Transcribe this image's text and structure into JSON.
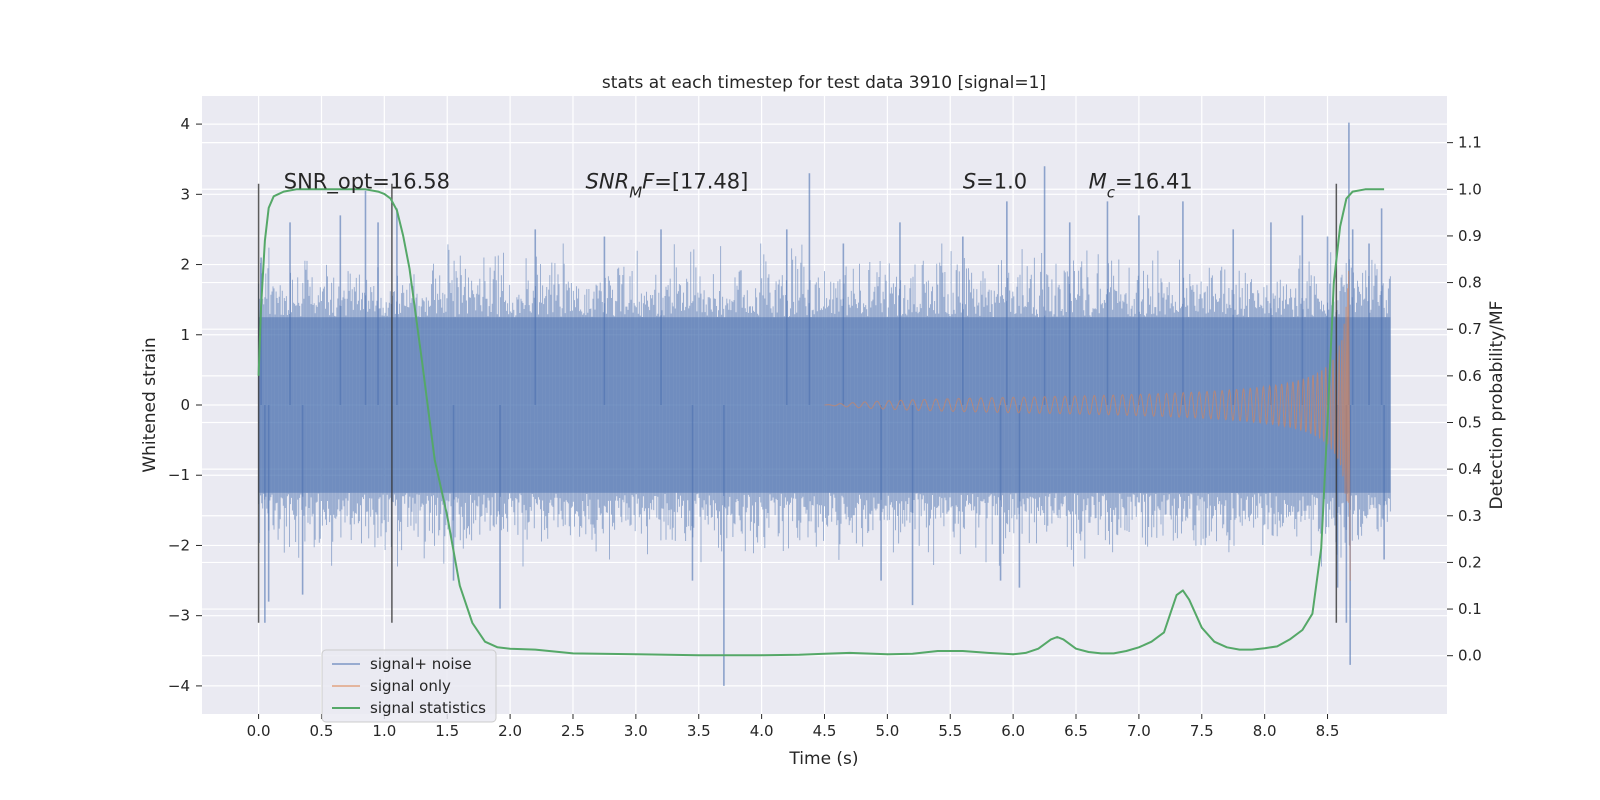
{
  "chart_data": {
    "type": "line",
    "title": "stats at each timestep for test data 3910 [signal=1]",
    "xlabel": "Time (s)",
    "ylabel": "Whitened strain",
    "y2label": "Detection probability/MF",
    "xlim": [
      -0.45,
      9.45
    ],
    "ylim": [
      -4.4,
      4.4
    ],
    "y2lim": [
      -0.125,
      1.2
    ],
    "x_ticks": [
      0.0,
      0.5,
      1.0,
      1.5,
      2.0,
      2.5,
      3.0,
      3.5,
      4.0,
      4.5,
      5.0,
      5.5,
      6.0,
      6.5,
      7.0,
      7.5,
      8.0,
      8.5
    ],
    "x_tick_labels": [
      "0.0",
      "0.5",
      "1.0",
      "1.5",
      "2.0",
      "2.5",
      "3.0",
      "3.5",
      "4.0",
      "4.5",
      "5.0",
      "5.5",
      "6.0",
      "6.5",
      "7.0",
      "7.5",
      "8.0",
      "8.5"
    ],
    "y_ticks": [
      4,
      3,
      2,
      1,
      0,
      -1,
      -2,
      -3,
      -4
    ],
    "y_tick_labels": [
      "4",
      "3",
      "2",
      "1",
      "0",
      "−1",
      "−2",
      "−3",
      "−4"
    ],
    "y2_ticks": [
      1.1,
      1.0,
      0.9,
      0.8,
      0.7,
      0.6,
      0.5,
      0.4,
      0.3,
      0.2,
      0.1,
      0.0
    ],
    "y2_tick_labels": [
      "1.1",
      "1.0",
      "0.9",
      "0.8",
      "0.7",
      "0.6",
      "0.5",
      "0.4",
      "0.3",
      "0.2",
      "0.1",
      "0.0"
    ],
    "annotations": [
      {
        "text": "SNR_opt=16.58",
        "x": 0.2,
        "y2": 1.0
      },
      {
        "text": "SNR_MF=[17.48]",
        "x": 2.6,
        "y2": 1.0
      },
      {
        "text": "S=1.0",
        "x": 5.6,
        "y2": 1.0
      },
      {
        "text": "M_c=16.41",
        "x": 6.6,
        "y2": 1.0
      }
    ],
    "vertical_lines": [
      0.0,
      1.06,
      8.57
    ],
    "vertical_line_range": [
      -3.1,
      3.15
    ],
    "series": [
      {
        "name": "signal+ noise",
        "color": "#4c72b0",
        "t_range": [
          0.0,
          9.0
        ],
        "body_amplitude": 1.25,
        "spikes": [
          {
            "t": 0.02,
            "v": 2.1
          },
          {
            "t": 0.05,
            "v": -3.1
          },
          {
            "t": 0.08,
            "v": -2.8
          },
          {
            "t": 0.25,
            "v": 2.6
          },
          {
            "t": 0.35,
            "v": -2.7
          },
          {
            "t": 0.65,
            "v": 2.7
          },
          {
            "t": 0.85,
            "v": 3.05
          },
          {
            "t": 0.95,
            "v": 2.6
          },
          {
            "t": 1.1,
            "v": 2.8
          },
          {
            "t": 1.55,
            "v": -2.5
          },
          {
            "t": 1.92,
            "v": -2.9
          },
          {
            "t": 2.2,
            "v": 2.5
          },
          {
            "t": 2.75,
            "v": 2.4
          },
          {
            "t": 3.2,
            "v": 2.5
          },
          {
            "t": 3.45,
            "v": -2.5
          },
          {
            "t": 3.7,
            "v": -4.0
          },
          {
            "t": 4.2,
            "v": 2.5
          },
          {
            "t": 4.38,
            "v": 3.3
          },
          {
            "t": 4.65,
            "v": 2.3
          },
          {
            "t": 4.95,
            "v": -2.5
          },
          {
            "t": 5.1,
            "v": 2.6
          },
          {
            "t": 5.2,
            "v": -2.85
          },
          {
            "t": 5.6,
            "v": 2.4
          },
          {
            "t": 5.9,
            "v": -2.5
          },
          {
            "t": 5.95,
            "v": 2.9
          },
          {
            "t": 6.05,
            "v": -2.6
          },
          {
            "t": 6.25,
            "v": 3.4
          },
          {
            "t": 6.45,
            "v": 2.6
          },
          {
            "t": 6.75,
            "v": 2.9
          },
          {
            "t": 7.0,
            "v": 2.7
          },
          {
            "t": 7.35,
            "v": 2.9
          },
          {
            "t": 7.75,
            "v": 2.5
          },
          {
            "t": 8.05,
            "v": 2.6
          },
          {
            "t": 8.3,
            "v": 2.7
          },
          {
            "t": 8.5,
            "v": 2.4
          },
          {
            "t": 8.58,
            "v": -2.6
          },
          {
            "t": 8.65,
            "v": -3.1
          },
          {
            "t": 8.67,
            "v": 4.02
          },
          {
            "t": 8.68,
            "v": -3.7
          },
          {
            "t": 8.7,
            "v": 2.5
          },
          {
            "t": 8.83,
            "v": 2.3
          },
          {
            "t": 8.93,
            "v": 2.8
          },
          {
            "t": 8.95,
            "v": -2.2
          }
        ]
      },
      {
        "name": "signal only",
        "color": "#dd8452",
        "t_start": 4.5,
        "t_merger": 8.67,
        "peak_amplitude": 2.2
      },
      {
        "name": "signal statistics",
        "color": "#55a868",
        "axis": "right",
        "x": [
          0.0,
          0.02,
          0.05,
          0.08,
          0.12,
          0.2,
          0.3,
          0.5,
          0.7,
          0.85,
          0.95,
          1.0,
          1.05,
          1.1,
          1.15,
          1.2,
          1.3,
          1.4,
          1.5,
          1.6,
          1.7,
          1.8,
          1.9,
          2.0,
          2.2,
          2.5,
          3.0,
          3.5,
          4.0,
          4.3,
          4.5,
          4.7,
          5.0,
          5.2,
          5.4,
          5.6,
          5.8,
          6.0,
          6.1,
          6.2,
          6.3,
          6.35,
          6.4,
          6.5,
          6.6,
          6.7,
          6.8,
          6.9,
          7.0,
          7.1,
          7.2,
          7.25,
          7.3,
          7.35,
          7.4,
          7.5,
          7.6,
          7.7,
          7.8,
          7.9,
          8.0,
          8.1,
          8.2,
          8.3,
          8.38,
          8.45,
          8.5,
          8.55,
          8.6,
          8.65,
          8.7,
          8.8,
          8.9,
          8.95
        ],
        "values": [
          0.6,
          0.75,
          0.89,
          0.96,
          0.985,
          0.995,
          1.0,
          1.0,
          1.0,
          1.0,
          0.995,
          0.99,
          0.98,
          0.955,
          0.9,
          0.83,
          0.63,
          0.42,
          0.3,
          0.15,
          0.07,
          0.03,
          0.018,
          0.015,
          0.013,
          0.005,
          0.003,
          0.001,
          0.001,
          0.002,
          0.004,
          0.006,
          0.003,
          0.004,
          0.01,
          0.01,
          0.006,
          0.003,
          0.006,
          0.015,
          0.035,
          0.04,
          0.035,
          0.015,
          0.008,
          0.005,
          0.005,
          0.01,
          0.018,
          0.03,
          0.05,
          0.09,
          0.13,
          0.14,
          0.12,
          0.06,
          0.03,
          0.018,
          0.013,
          0.013,
          0.016,
          0.02,
          0.035,
          0.055,
          0.09,
          0.23,
          0.5,
          0.8,
          0.92,
          0.98,
          0.995,
          1.0,
          1.0,
          1.0
        ]
      }
    ],
    "legend": {
      "position": "lower-left",
      "entries": [
        "signal+ noise",
        "signal only",
        "signal statistics"
      ]
    }
  }
}
